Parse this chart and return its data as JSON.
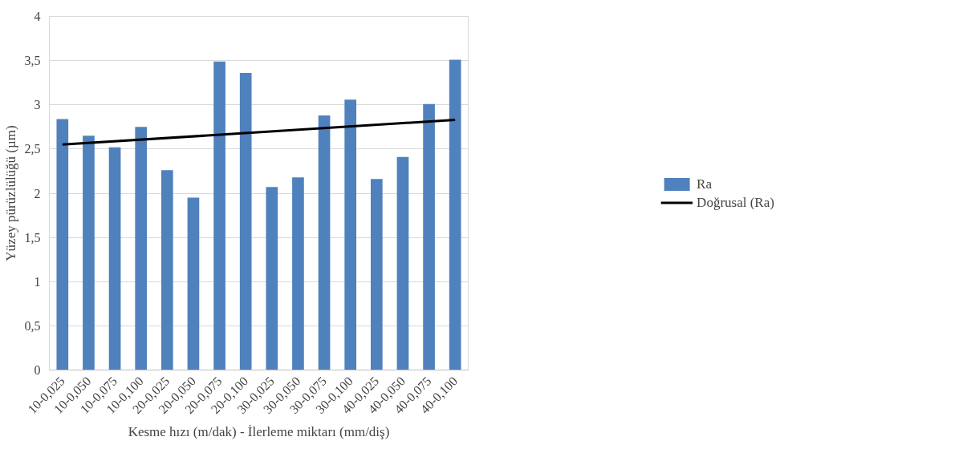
{
  "chart_data": {
    "type": "bar",
    "xlabel": "Kesme hızı (m/dak) - İlerleme miktarı (mm/diş)",
    "ylabel": "Yüzey pürüzlülüğü (µm)",
    "categories": [
      "10-0,025",
      "10-0,050",
      "10-0,075",
      "10-0,100",
      "20-0,025",
      "20-0,050",
      "20-0,075",
      "20-0,100",
      "30-0,025",
      "30-0,050",
      "30-0,075",
      "30-0,100",
      "40-0,025",
      "40-0,050",
      "40-0,075",
      "40-0,100"
    ],
    "series": [
      {
        "name": "Ra",
        "color": "#4f81bd",
        "values": [
          2.84,
          2.65,
          2.52,
          2.75,
          2.26,
          1.95,
          3.49,
          3.36,
          2.07,
          2.18,
          2.88,
          3.06,
          2.16,
          2.41,
          3.01,
          3.51
        ]
      },
      {
        "name": "Doğrusal (Ra)",
        "type": "line",
        "color": "#000000",
        "x": [
          "10-0,025",
          "40-0,100"
        ],
        "values": [
          2.55,
          2.83
        ]
      }
    ],
    "ylim": [
      0,
      4
    ],
    "yticks": [
      0,
      {
        "value": 0.5,
        "label": "0,5"
      },
      1,
      {
        "value": 1.5,
        "label": "1,5"
      },
      2,
      {
        "value": 2.5,
        "label": "2,5"
      },
      3,
      {
        "value": 3.5,
        "label": "3,5"
      },
      4
    ],
    "grid": "y",
    "legend": "right"
  }
}
